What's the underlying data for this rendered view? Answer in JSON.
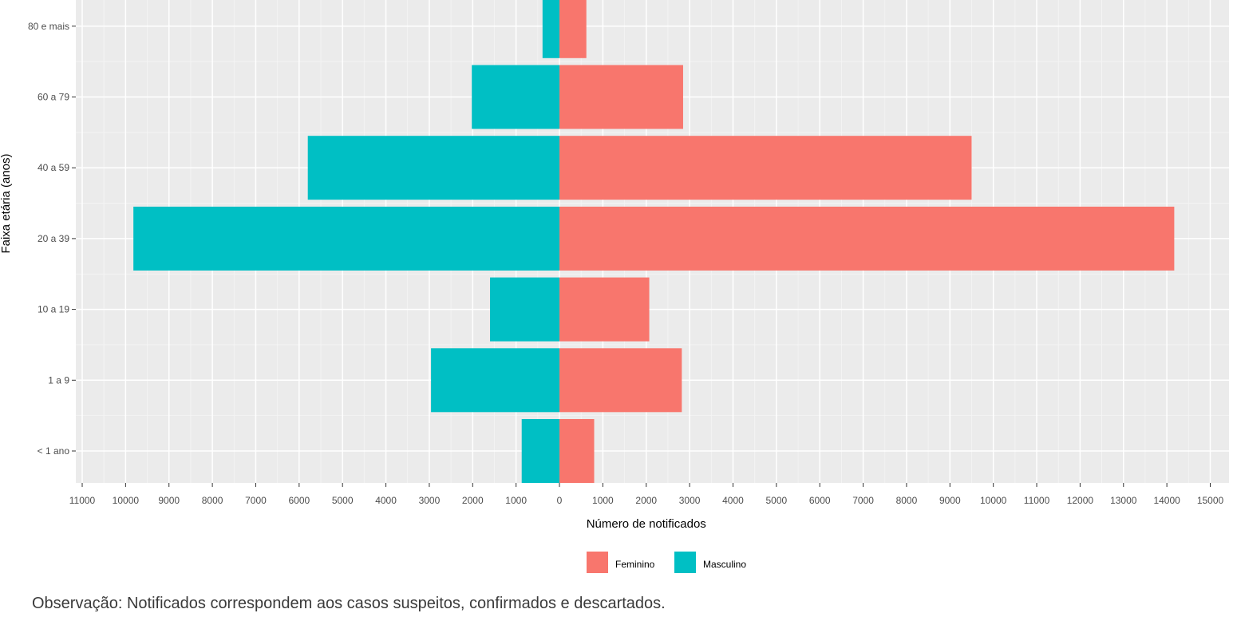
{
  "chart_data": {
    "type": "bar",
    "orientation": "horizontal",
    "title": "",
    "xlabel": "Número de notificados",
    "ylabel": "Faixa etária (anos)",
    "categories": [
      "< 1 ano",
      "1 a 9",
      "10 a 19",
      "20 a 39",
      "40 a 59",
      "60 a 79",
      "80 e mais"
    ],
    "series": [
      {
        "name": "Feminino",
        "color": "#f8766d",
        "values": [
          800,
          2820,
          2070,
          14170,
          9500,
          2850,
          620
        ]
      },
      {
        "name": "Masculino",
        "color": "#00bfc4",
        "values": [
          870,
          2960,
          1600,
          9820,
          5800,
          2020,
          390
        ]
      }
    ],
    "x_ticks": [
      -11000,
      -10000,
      -9000,
      -8000,
      -7000,
      -6000,
      -5000,
      -4000,
      -3000,
      -2000,
      -1000,
      0,
      1000,
      2000,
      3000,
      4000,
      5000,
      6000,
      7000,
      8000,
      9000,
      10000,
      11000,
      12000,
      13000,
      14000,
      15000
    ],
    "x_tick_labels": [
      "11000",
      "10000",
      "9000",
      "8000",
      "7000",
      "6000",
      "5000",
      "4000",
      "3000",
      "2000",
      "1000",
      "0",
      "1000",
      "2000",
      "3000",
      "4000",
      "5000",
      "6000",
      "7000",
      "8000",
      "9000",
      "10000",
      "11000",
      "12000",
      "13000",
      "14000",
      "15000"
    ],
    "xlim": [
      -11000,
      15000
    ],
    "grid": true,
    "legend_position": "bottom"
  },
  "note": "Observação: Notificados correspondem aos casos suspeitos, confirmados e descartados."
}
